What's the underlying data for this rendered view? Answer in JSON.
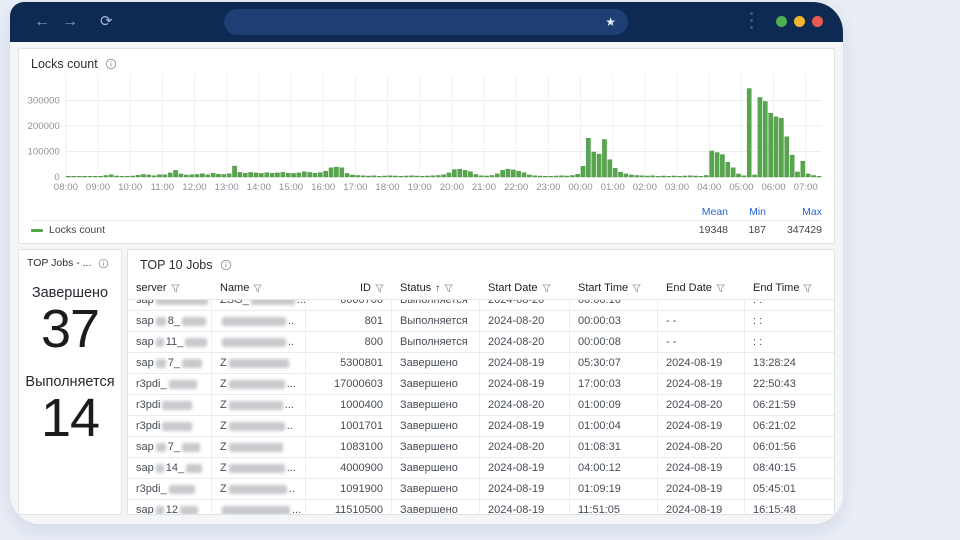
{
  "browser": {
    "icons": {
      "back": "←",
      "forward": "→",
      "refresh": "⟳",
      "star": "★",
      "menu": "kebab-vertical"
    },
    "url_value": "",
    "traffic_lights": [
      "#4caf50",
      "#f2b62e",
      "#ea5a52"
    ]
  },
  "chart_panel": {
    "title": "Locks count",
    "legend": {
      "series_name": "Locks count",
      "swatch_color": "#56a64b",
      "stat_headers": [
        "Mean",
        "Min",
        "Max"
      ],
      "stat_values": [
        "19348",
        "187",
        "347429"
      ]
    }
  },
  "chart_data": {
    "type": "bar",
    "title": "Locks count",
    "series_name": "Locks count",
    "color": "#57a64e",
    "bar_stroke": "#469040",
    "ylim": [
      0,
      400000
    ],
    "y_ticks": [
      0,
      100000,
      200000,
      300000
    ],
    "x_start": "08:00",
    "interval_minutes": 10,
    "x_tick_labels": [
      "08:00",
      "09:00",
      "10:00",
      "11:00",
      "12:00",
      "13:00",
      "14:00",
      "15:00",
      "16:00",
      "17:00",
      "18:00",
      "19:00",
      "20:00",
      "21:00",
      "22:00",
      "23:00",
      "00:00",
      "01:00",
      "02:00",
      "03:00",
      "04:00",
      "05:00",
      "06:00",
      "07:00"
    ],
    "grid": true,
    "legend_position": "bottom",
    "mean": 19348,
    "min": 187,
    "max": 347429,
    "values": [
      2000,
      1000,
      2000,
      1000,
      3000,
      2000,
      2000,
      6000,
      9000,
      4000,
      3000,
      2000,
      4000,
      7000,
      10000,
      8000,
      5000,
      9000,
      9000,
      16000,
      26000,
      12000,
      8000,
      9000,
      10000,
      13000,
      9000,
      15000,
      11000,
      10000,
      13000,
      43000,
      18000,
      15000,
      18000,
      16000,
      14000,
      17000,
      15000,
      16000,
      18000,
      15000,
      14000,
      16000,
      21000,
      18000,
      15000,
      17000,
      23000,
      36000,
      39000,
      36000,
      14000,
      8000,
      6000,
      5000,
      4000,
      5000,
      3000,
      4000,
      5000,
      4000,
      3000,
      4000,
      5000,
      4000,
      3000,
      4000,
      5000,
      6000,
      9000,
      16000,
      29000,
      31000,
      26000,
      21000,
      10000,
      5000,
      4000,
      6000,
      13000,
      26000,
      31000,
      28000,
      23000,
      17000,
      8000,
      5000,
      4000,
      3000,
      3000,
      4000,
      5000,
      4000,
      6000,
      11000,
      42000,
      152000,
      98000,
      90000,
      147000,
      68000,
      34000,
      19000,
      12000,
      8000,
      6000,
      5000,
      4000,
      5000,
      3000,
      4000,
      3000,
      4000,
      3000,
      4000,
      5000,
      4000,
      3000,
      6000,
      102000,
      96000,
      88000,
      58000,
      36000,
      12000,
      5000,
      347000,
      8000,
      312000,
      296000,
      250000,
      236000,
      230000,
      158000,
      86000,
      20000,
      62000,
      12000,
      6000,
      3000
    ]
  },
  "stat_panel": {
    "title": "TOP Jobs - ...",
    "stats": [
      {
        "label": "Завершено",
        "value": "37"
      },
      {
        "label": "Выполняется",
        "value": "14"
      }
    ]
  },
  "table_panel": {
    "title": "TOP 10 Jobs",
    "columns": [
      {
        "label": "server",
        "filter": true,
        "sort": "",
        "align": "left"
      },
      {
        "label": "Name",
        "filter": true,
        "sort": "",
        "align": "left"
      },
      {
        "label": "ID",
        "filter": true,
        "sort": "",
        "align": "right"
      },
      {
        "label": "Status",
        "filter": true,
        "sort": "↑",
        "align": "left"
      },
      {
        "label": "Start Date",
        "filter": true,
        "sort": "",
        "align": "left"
      },
      {
        "label": "Start Time",
        "filter": true,
        "sort": "",
        "align": "left"
      },
      {
        "label": "End Date",
        "filter": true,
        "sort": "",
        "align": "left"
      },
      {
        "label": "End Time",
        "filter": true,
        "sort": "",
        "align": "left"
      }
    ],
    "rows": [
      {
        "server": {
          "pre": "sap",
          "b1": 52,
          "mid": "",
          "b2": 0
        },
        "name": {
          "pre": "ZSG_",
          "b": 44,
          "suf": "..."
        },
        "id": "6000700",
        "status": "Выполняется",
        "start_date": "2024-08-20",
        "start_time": "00:00:16",
        "end_date": "",
        "end_time": ": :"
      },
      {
        "server": {
          "pre": "sap",
          "b1": 10,
          "mid": "8_",
          "b2": 24
        },
        "name": {
          "pre": "",
          "b": 64,
          "suf": ".."
        },
        "id": "801",
        "status": "Выполняется",
        "start_date": "2024-08-20",
        "start_time": "00:00:03",
        "end_date": "- -",
        "end_time": ": :"
      },
      {
        "server": {
          "pre": "sap",
          "b1": 8,
          "mid": "11_",
          "b2": 22
        },
        "name": {
          "pre": "",
          "b": 64,
          "suf": ".."
        },
        "id": "800",
        "status": "Выполняется",
        "start_date": "2024-08-20",
        "start_time": "00:00:08",
        "end_date": "- -",
        "end_time": ": :"
      },
      {
        "server": {
          "pre": "sap",
          "b1": 10,
          "mid": "7_",
          "b2": 20
        },
        "name": {
          "pre": "Z",
          "b": 60,
          "suf": ""
        },
        "id": "5300801",
        "status": "Завершено",
        "start_date": "2024-08-19",
        "start_time": "05:30:07",
        "end_date": "2024-08-19",
        "end_time": "13:28:24"
      },
      {
        "server": {
          "pre": "r3pdi_",
          "b1": 28,
          "mid": "",
          "b2": 0
        },
        "name": {
          "pre": "Z",
          "b": 56,
          "suf": "..."
        },
        "id": "17000603",
        "status": "Завершено",
        "start_date": "2024-08-19",
        "start_time": "17:00:03",
        "end_date": "2024-08-19",
        "end_time": "22:50:43"
      },
      {
        "server": {
          "pre": "r3pdi",
          "b1": 30,
          "mid": "",
          "b2": 0
        },
        "name": {
          "pre": "Z",
          "b": 54,
          "suf": "..."
        },
        "id": "1000400",
        "status": "Завершено",
        "start_date": "2024-08-20",
        "start_time": "01:00:09",
        "end_date": "2024-08-20",
        "end_time": "06:21:59"
      },
      {
        "server": {
          "pre": "r3pdi",
          "b1": 30,
          "mid": "",
          "b2": 0
        },
        "name": {
          "pre": "Z",
          "b": 56,
          "suf": ".."
        },
        "id": "1001701",
        "status": "Завершено",
        "start_date": "2024-08-19",
        "start_time": "01:00:04",
        "end_date": "2024-08-19",
        "end_time": "06:21:02"
      },
      {
        "server": {
          "pre": "sap",
          "b1": 10,
          "mid": "7_",
          "b2": 18
        },
        "name": {
          "pre": "Z",
          "b": 54,
          "suf": ""
        },
        "id": "1083100",
        "status": "Завершено",
        "start_date": "2024-08-20",
        "start_time": "01:08:31",
        "end_date": "2024-08-20",
        "end_time": "06:01:56"
      },
      {
        "server": {
          "pre": "sap",
          "b1": 8,
          "mid": "14_",
          "b2": 16
        },
        "name": {
          "pre": "Z",
          "b": 56,
          "suf": "..."
        },
        "id": "4000900",
        "status": "Завершено",
        "start_date": "2024-08-19",
        "start_time": "04:00:12",
        "end_date": "2024-08-19",
        "end_time": "08:40:15"
      },
      {
        "server": {
          "pre": "r3pdi_",
          "b1": 26,
          "mid": "",
          "b2": 0
        },
        "name": {
          "pre": "Z",
          "b": 58,
          "suf": ".."
        },
        "id": "1091900",
        "status": "Завершено",
        "start_date": "2024-08-19",
        "start_time": "01:09:19",
        "end_date": "2024-08-19",
        "end_time": "05:45:01"
      },
      {
        "server": {
          "pre": "sap",
          "b1": 8,
          "mid": "12",
          "b2": 18
        },
        "name": {
          "pre": "",
          "b": 68,
          "suf": "..."
        },
        "id": "11510500",
        "status": "Завершено",
        "start_date": "2024-08-19",
        "start_time": "11:51:05",
        "end_date": "2024-08-19",
        "end_time": "16:15:48"
      }
    ]
  }
}
